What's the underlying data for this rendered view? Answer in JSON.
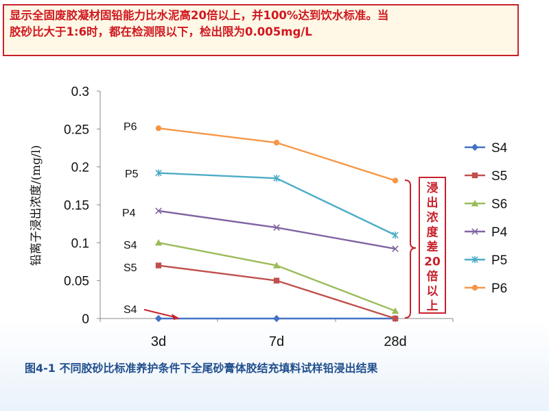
{
  "banner": {
    "line1": "显示全固废胶凝材固铅能力比水泥高20倍以上，并100%达到饮水标准。当",
    "line2": "胶砂比大于1:6时，都在检测限以下，检出限为0.005mg/L"
  },
  "caption": "图4-1  不同胶砂比标准养护条件下全尾砂膏体胶结充填料试样铅浸出结果",
  "chart_data": {
    "type": "line",
    "categories": [
      "3d",
      "7d",
      "28d"
    ],
    "ylabel": "铅离子浸出浓度/(mg/l)",
    "ylim": [
      0,
      0.3
    ],
    "yticks": [
      "0",
      "0.05",
      "0.1",
      "0.15",
      "0.2",
      "0.25",
      "0.3"
    ],
    "grid": false,
    "legend_position": "right",
    "series": [
      {
        "name": "S4",
        "values": [
          0,
          0,
          0
        ],
        "color": "#4472c4",
        "marker": "diamond"
      },
      {
        "name": "S5",
        "values": [
          0.07,
          0.05,
          0
        ],
        "color": "#c0504d",
        "marker": "square"
      },
      {
        "name": "S6",
        "values": [
          0.1,
          0.07,
          0.01
        ],
        "color": "#9bbb59",
        "marker": "triangle"
      },
      {
        "name": "P4",
        "values": [
          0.142,
          0.12,
          0.092
        ],
        "color": "#8064a2",
        "marker": "x"
      },
      {
        "name": "P5",
        "values": [
          0.192,
          0.185,
          0.11
        ],
        "color": "#4bacc6",
        "marker": "star"
      },
      {
        "name": "P6",
        "values": [
          0.251,
          0.232,
          0.182
        ],
        "color": "#f79646",
        "marker": "circle"
      }
    ],
    "annotations": {
      "series_labels": [
        "P6",
        "P5",
        "P4",
        "S4",
        "S5",
        "S4"
      ],
      "bracket_text": "浸出浓度差20倍以上",
      "accent_color": "#c8202a"
    }
  }
}
